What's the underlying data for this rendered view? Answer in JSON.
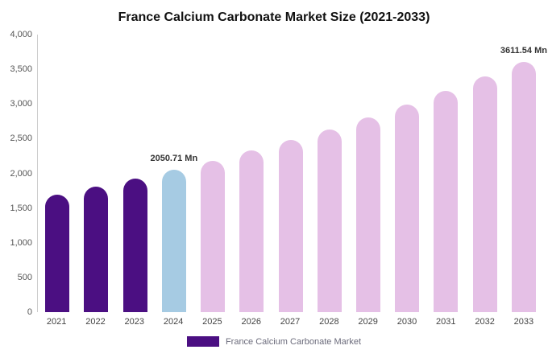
{
  "chart_data": {
    "type": "bar",
    "title": "France Calcium Carbonate Market Size (2021-2033)",
    "categories": [
      "2021",
      "2022",
      "2023",
      "2024",
      "2025",
      "2026",
      "2027",
      "2028",
      "2029",
      "2030",
      "2031",
      "2032",
      "2033"
    ],
    "values": [
      1698,
      1808,
      1926,
      2050.71,
      2184,
      2326,
      2477,
      2637,
      2809,
      2991,
      3185,
      3392,
      3611.54
    ],
    "bar_colors": [
      "#4B0F82",
      "#4B0F82",
      "#4B0F82",
      "#A6CBE3",
      "#E5C0E6",
      "#E5C0E6",
      "#E5C0E6",
      "#E5C0E6",
      "#E5C0E6",
      "#E5C0E6",
      "#E5C0E6",
      "#E5C0E6",
      "#E5C0E6"
    ],
    "annotations": [
      {
        "index": 3,
        "text": "2050.71 Mn"
      },
      {
        "index": 12,
        "text": "3611.54 Mn"
      }
    ],
    "ylim": [
      0,
      4000
    ],
    "yticks": [
      0,
      500,
      1000,
      1500,
      2000,
      2500,
      3000,
      3500,
      4000
    ],
    "ytick_labels": [
      "0",
      "500",
      "1,000",
      "1,500",
      "2,000",
      "2,500",
      "3,000",
      "3,500",
      "4,000"
    ],
    "legend": "France Calcium Carbonate Market",
    "legend_color": "#4B0F82",
    "grid": false,
    "legend_position": "bottom"
  }
}
